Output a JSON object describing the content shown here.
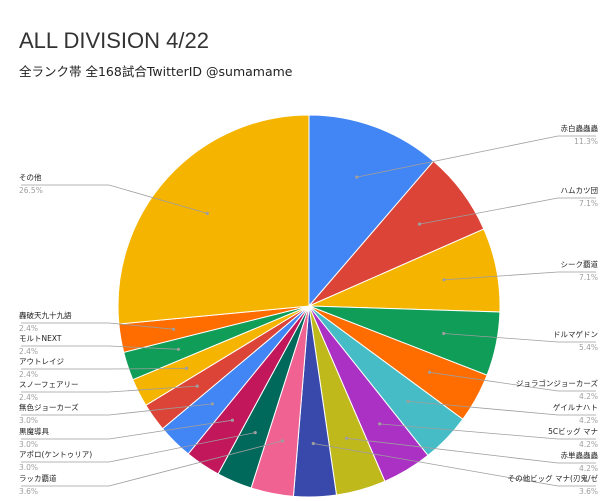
{
  "chart_data": {
    "type": "pie",
    "title": "ALL DIVISION 4/22",
    "subtitle": "全ランク帯 全168試合TwitterID @sumamame",
    "slices": [
      {
        "label": "赤白蟲蟲蟲",
        "pct_label": "11.3%",
        "value": 11.3,
        "color": "#4285f4"
      },
      {
        "label": "ハムカツ団",
        "pct_label": "7.1%",
        "value": 7.1,
        "color": "#db4437"
      },
      {
        "label": "シーク覇道",
        "pct_label": "7.1%",
        "value": 7.1,
        "color": "#f4b400"
      },
      {
        "label": "ドルマゲドン",
        "pct_label": "5.4%",
        "value": 5.4,
        "color": "#0f9d58"
      },
      {
        "label": "ジョラゴンジョーカーズ",
        "pct_label": "4.2%",
        "value": 4.2,
        "color": "#ff6d00"
      },
      {
        "label": "ゲイルナハト",
        "pct_label": "4.2%",
        "value": 4.2,
        "color": "#46bdc6"
      },
      {
        "label": "5Cビッグ マナ",
        "pct_label": "4.2%",
        "value": 4.2,
        "color": "#ab30c4"
      },
      {
        "label": "赤単蟲蟲蟲",
        "pct_label": "4.2%",
        "value": 4.2,
        "color": "#c0b91c"
      },
      {
        "label": "その他ビッグ マナ(刃鬼/ゼ",
        "pct_label": "3.6%",
        "value": 3.6,
        "color": "#3949ab"
      },
      {
        "label": "ラッカ覇道",
        "pct_label": "3.6%",
        "value": 3.6,
        "color": "#f06292"
      },
      {
        "label": "アポロ(ケントゥリア)",
        "pct_label": "3.0%",
        "value": 3.0,
        "color": "#00695c"
      },
      {
        "label": "黒魔導具",
        "pct_label": "3.0%",
        "value": 3.0,
        "color": "#c2185b"
      },
      {
        "label": "無色ジョーカーズ",
        "pct_label": "3.0%",
        "value": 3.0,
        "color": "#4285f4"
      },
      {
        "label": "スノーフェアリー",
        "pct_label": "2.4%",
        "value": 2.4,
        "color": "#db4437"
      },
      {
        "label": "アウトレイジ",
        "pct_label": "2.4%",
        "value": 2.4,
        "color": "#f4b400"
      },
      {
        "label": "モルトNEXT",
        "pct_label": "2.4%",
        "value": 2.4,
        "color": "#0f9d58"
      },
      {
        "label": "轟破天九十九語",
        "pct_label": "2.4%",
        "value": 2.4,
        "color": "#ff6d00"
      },
      {
        "label": "その他",
        "pct_label": "26.5%",
        "value": 26.5,
        "color": "#f4b400"
      }
    ]
  }
}
